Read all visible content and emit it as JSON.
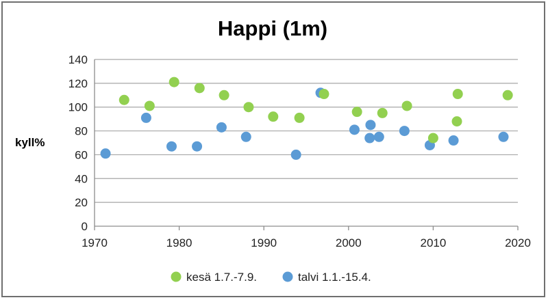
{
  "chart_data": {
    "type": "scatter",
    "title": "Happi (1m)",
    "xlabel": "",
    "ylabel": "kyll%",
    "xlim": [
      1970,
      2020
    ],
    "ylim": [
      0,
      140
    ],
    "xticks": [
      "1970",
      "1980",
      "1990",
      "2000",
      "2010",
      "2020"
    ],
    "yticks": [
      "0",
      "20",
      "40",
      "60",
      "80",
      "100",
      "120",
      "140"
    ],
    "grid": "horizontal",
    "legend_position": "bottom",
    "series": [
      {
        "name": "kesä 1.7.-7.9.",
        "color": "#92d050",
        "points": [
          [
            1973.5,
            106
          ],
          [
            1976.5,
            101
          ],
          [
            1979.4,
            121
          ],
          [
            1982.4,
            116
          ],
          [
            1985.3,
            110
          ],
          [
            1988.2,
            100
          ],
          [
            1991.1,
            92
          ],
          [
            1994.2,
            91
          ],
          [
            1997.1,
            111
          ],
          [
            2001.0,
            96
          ],
          [
            2004.0,
            95
          ],
          [
            2006.9,
            101
          ],
          [
            2010.0,
            74
          ],
          [
            2012.8,
            88
          ],
          [
            2012.9,
            111
          ],
          [
            2018.8,
            110
          ]
        ]
      },
      {
        "name": "talvi 1.1.-15.4.",
        "color": "#5b9bd5",
        "points": [
          [
            1971.3,
            61
          ],
          [
            1976.1,
            91
          ],
          [
            1979.1,
            67
          ],
          [
            1982.1,
            67
          ],
          [
            1985.0,
            83
          ],
          [
            1987.9,
            75
          ],
          [
            1993.8,
            60
          ],
          [
            1996.7,
            112
          ],
          [
            2000.7,
            81
          ],
          [
            2002.5,
            74
          ],
          [
            2002.6,
            85
          ],
          [
            2003.6,
            75
          ],
          [
            2006.6,
            80
          ],
          [
            2009.6,
            68
          ],
          [
            2012.4,
            72
          ],
          [
            2018.3,
            75
          ]
        ]
      }
    ]
  }
}
